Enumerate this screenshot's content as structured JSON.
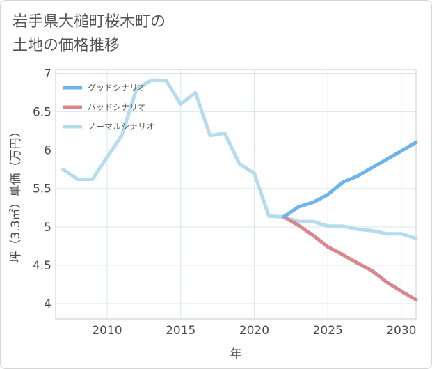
{
  "title_lines": [
    "岩手県大槌町桜木町の",
    "土地の価格推移"
  ],
  "chart_data": {
    "type": "line",
    "title": "岩手県大槌町桜木町の土地の価格推移",
    "xlabel": "年",
    "ylabel": "坪（3.3㎡）単価（万円）",
    "xlim": [
      2006.5,
      2031
    ],
    "ylim": [
      3.8,
      7.05
    ],
    "xticks": [
      2010,
      2015,
      2020,
      2025,
      2030
    ],
    "yticks": [
      4,
      4.5,
      5,
      5.5,
      6,
      6.5,
      7
    ],
    "ytick_labels": [
      "4",
      "4.5",
      "5",
      "5.5",
      "6",
      "6.5",
      "7"
    ],
    "legend_position": "top-left",
    "series": [
      {
        "name": "グッドシナリオ",
        "color": "#6cb4ea",
        "x": [
          2022,
          2023,
          2024,
          2025,
          2026,
          2027,
          2028,
          2029,
          2030,
          2031
        ],
        "y": [
          5.13,
          5.26,
          5.32,
          5.42,
          5.58,
          5.66,
          5.77,
          5.88,
          5.99,
          6.1
        ]
      },
      {
        "name": "バッドシナリオ",
        "color": "#d9868f",
        "x": [
          2022,
          2023,
          2024,
          2025,
          2026,
          2027,
          2028,
          2029,
          2030,
          2031
        ],
        "y": [
          5.13,
          5.02,
          4.89,
          4.74,
          4.64,
          4.53,
          4.43,
          4.28,
          4.16,
          4.05
        ]
      },
      {
        "name": "ノーマルシナリオ",
        "color": "#b5dcec",
        "x": [
          2007,
          2008,
          2009,
          2010,
          2011,
          2012,
          2013,
          2014,
          2015,
          2016,
          2017,
          2018,
          2019,
          2020,
          2021,
          2022,
          2023,
          2024,
          2025,
          2026,
          2027,
          2028,
          2029,
          2030,
          2031
        ],
        "y": [
          5.75,
          5.62,
          5.62,
          5.91,
          6.19,
          6.8,
          6.91,
          6.91,
          6.6,
          6.75,
          6.19,
          6.22,
          5.82,
          5.7,
          5.14,
          5.13,
          5.07,
          5.07,
          5.01,
          5.01,
          4.97,
          4.95,
          4.91,
          4.91,
          4.85
        ]
      }
    ]
  }
}
